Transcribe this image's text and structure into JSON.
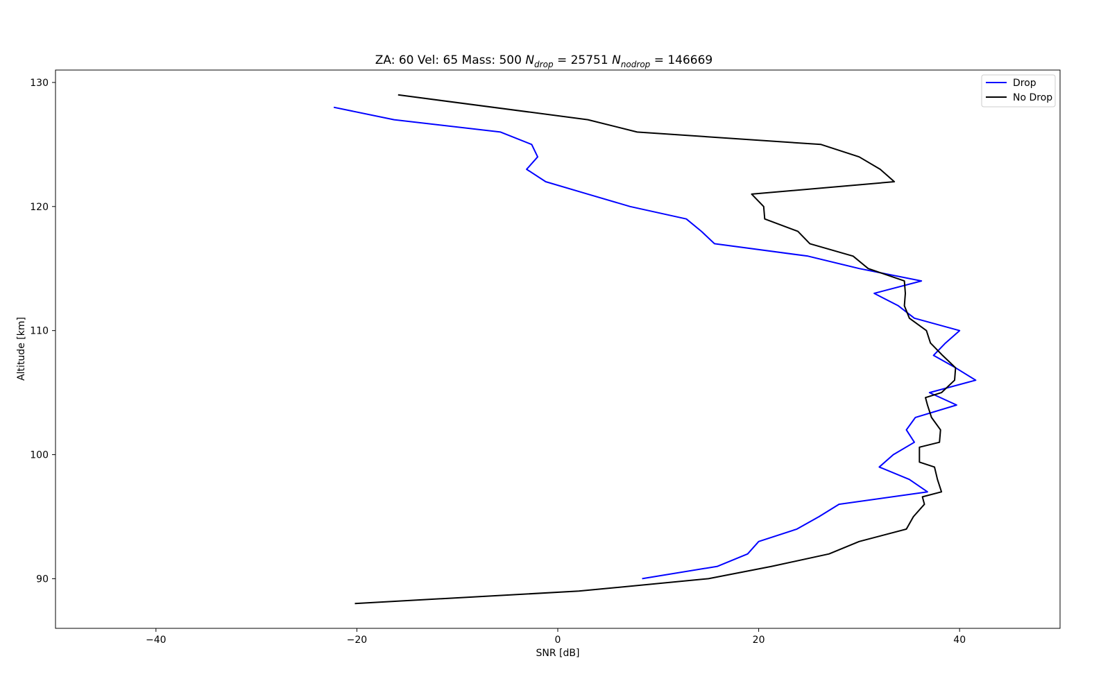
{
  "chart_data": {
    "type": "line",
    "title": {
      "prefix": "ZA: 60 Vel: 65 Mass: 500 ",
      "n_drop_label": "N",
      "n_drop_sub": "drop",
      "n_drop_value": " = 25751 ",
      "n_nodrop_label": "N",
      "n_nodrop_sub": "nodrop",
      "n_nodrop_value": " = 146669"
    },
    "xlabel": "SNR [dB]",
    "ylabel": "Altitude [km]",
    "xlim": [
      -50,
      50
    ],
    "ylim": [
      86,
      131
    ],
    "xticks": [
      -40,
      -20,
      0,
      20,
      40
    ],
    "xtick_labels": [
      "−40",
      "−20",
      "0",
      "20",
      "40"
    ],
    "yticks": [
      90,
      100,
      110,
      120,
      130
    ],
    "ytick_labels": [
      "90",
      "100",
      "110",
      "120",
      "130"
    ],
    "grid": false,
    "legend_position": "top-right",
    "series": [
      {
        "name": "Drop",
        "color": "#0000ff",
        "points": [
          [
            -22.3,
            128
          ],
          [
            -16.3,
            127
          ],
          [
            -5.7,
            126
          ],
          [
            -2.6,
            125
          ],
          [
            -2.0,
            124
          ],
          [
            -3.1,
            123
          ],
          [
            -1.2,
            122
          ],
          [
            3.0,
            121
          ],
          [
            7.2,
            120
          ],
          [
            12.8,
            119
          ],
          [
            14.3,
            118
          ],
          [
            15.6,
            117
          ],
          [
            24.9,
            116
          ],
          [
            30.0,
            115
          ],
          [
            36.2,
            114
          ],
          [
            31.5,
            113
          ],
          [
            33.9,
            112
          ],
          [
            35.5,
            111
          ],
          [
            40.0,
            110
          ],
          [
            38.6,
            109
          ],
          [
            37.4,
            108
          ],
          [
            39.6,
            107
          ],
          [
            41.6,
            106
          ],
          [
            37.0,
            105
          ],
          [
            39.7,
            104
          ],
          [
            35.6,
            103
          ],
          [
            34.7,
            102
          ],
          [
            35.5,
            101
          ],
          [
            33.4,
            100
          ],
          [
            32.0,
            99
          ],
          [
            35.0,
            98
          ],
          [
            36.8,
            97
          ],
          [
            28.0,
            96
          ],
          [
            26.0,
            95
          ],
          [
            23.8,
            94
          ],
          [
            20.0,
            93
          ],
          [
            18.9,
            92
          ],
          [
            15.9,
            91
          ],
          [
            8.4,
            90
          ]
        ]
      },
      {
        "name": "No Drop",
        "color": "#000000",
        "points": [
          [
            -15.9,
            129
          ],
          [
            3.0,
            127
          ],
          [
            7.9,
            126
          ],
          [
            26.2,
            125
          ],
          [
            30.0,
            124
          ],
          [
            32.1,
            123
          ],
          [
            33.5,
            122
          ],
          [
            19.3,
            121
          ],
          [
            20.5,
            120
          ],
          [
            20.6,
            119
          ],
          [
            23.9,
            118
          ],
          [
            25.1,
            117
          ],
          [
            29.4,
            116
          ],
          [
            30.9,
            115
          ],
          [
            34.5,
            114
          ],
          [
            34.6,
            113
          ],
          [
            34.5,
            112
          ],
          [
            35.0,
            111
          ],
          [
            36.7,
            110
          ],
          [
            37.1,
            109
          ],
          [
            38.3,
            108
          ],
          [
            39.6,
            107
          ],
          [
            39.5,
            106
          ],
          [
            38.2,
            105
          ],
          [
            36.6,
            104.6
          ],
          [
            36.8,
            104
          ],
          [
            37.2,
            103
          ],
          [
            38.1,
            102
          ],
          [
            38.0,
            101
          ],
          [
            36.0,
            100.6
          ],
          [
            36.0,
            99.4
          ],
          [
            37.5,
            99
          ],
          [
            37.8,
            98
          ],
          [
            38.2,
            97
          ],
          [
            36.3,
            96.6
          ],
          [
            36.5,
            96
          ],
          [
            35.4,
            95
          ],
          [
            34.7,
            94
          ],
          [
            30.0,
            93
          ],
          [
            27.0,
            92
          ],
          [
            21.3,
            91
          ],
          [
            15.0,
            90
          ],
          [
            2.1,
            89
          ],
          [
            -20.2,
            88
          ]
        ]
      }
    ]
  }
}
